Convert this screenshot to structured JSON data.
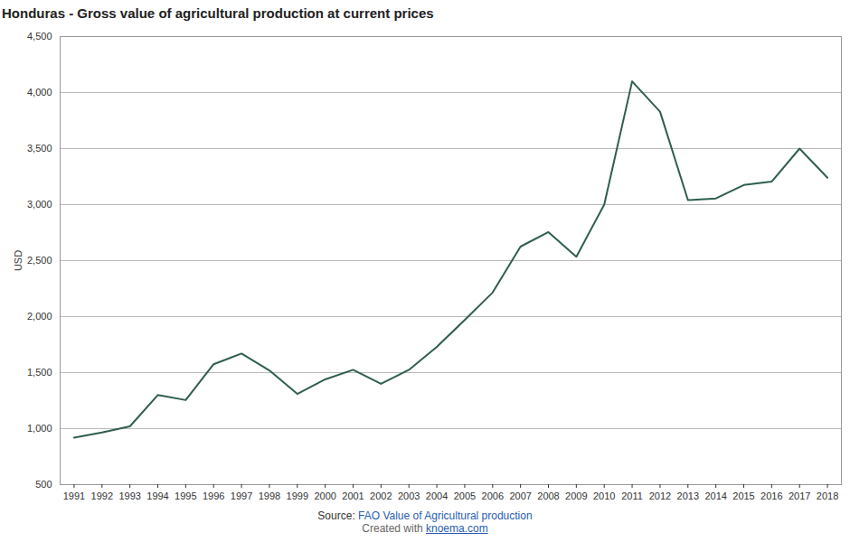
{
  "chart_data": {
    "type": "line",
    "title": "Honduras - Gross value of agricultural production at current prices",
    "y_label": "USD",
    "x": [
      1991,
      1992,
      1993,
      1994,
      1995,
      1996,
      1997,
      1998,
      1999,
      2000,
      2001,
      2002,
      2003,
      2004,
      2005,
      2006,
      2007,
      2008,
      2009,
      2010,
      2011,
      2012,
      2013,
      2014,
      2015,
      2016,
      2017,
      2018
    ],
    "values": [
      920,
      965,
      1020,
      1300,
      1255,
      1575,
      1670,
      1520,
      1310,
      1440,
      1525,
      1400,
      1525,
      1730,
      1970,
      2215,
      2625,
      2755,
      2535,
      3000,
      4100,
      3830,
      3040,
      3055,
      3175,
      3205,
      3500,
      3240
    ],
    "color": "#2f5f4b",
    "xlim": [
      1990.5,
      2018.5
    ],
    "xticks": [
      1991,
      1992,
      1993,
      1994,
      1995,
      1996,
      1997,
      1998,
      1999,
      2000,
      2001,
      2002,
      2003,
      2004,
      2005,
      2006,
      2007,
      2008,
      2009,
      2010,
      2011,
      2012,
      2013,
      2014,
      2015,
      2016,
      2017,
      2018
    ],
    "ylim": [
      500,
      4500
    ],
    "yticks": [
      500,
      {
        "value": 1000,
        "label": "1,000"
      },
      {
        "value": 1500,
        "label": "1,500"
      },
      {
        "value": 2000,
        "label": "2,000"
      },
      {
        "value": 2500,
        "label": "2,500"
      },
      {
        "value": 3000,
        "label": "3,000"
      },
      {
        "value": 3500,
        "label": "3,500"
      },
      {
        "value": 4000,
        "label": "4,000"
      },
      {
        "value": 4500,
        "label": "4,500"
      }
    ],
    "grid": true,
    "source_label": "Source:",
    "source": "FAO Value of Agricultural production",
    "credit_label": "Created with",
    "credit": "knoema.com"
  }
}
